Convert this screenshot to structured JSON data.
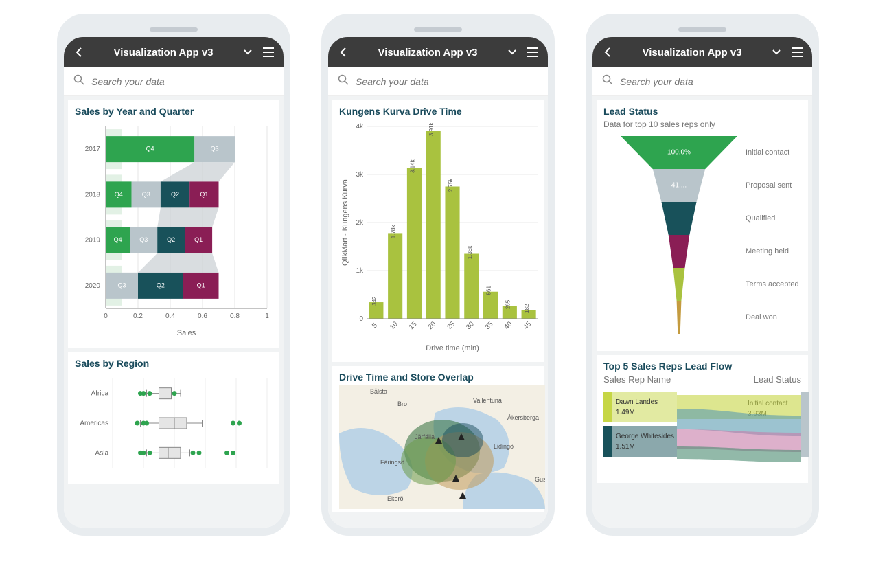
{
  "app": {
    "title": "Visualization App v3",
    "search_placeholder": "Search your data"
  },
  "colors": {
    "phone_frame": "#e8ecef",
    "header_bg": "#3c3c3c",
    "card_title": "#1a4b5c",
    "grid": "#dddddd",
    "axis_text": "#666666"
  },
  "phone1": {
    "chart1": {
      "title": "Sales by Year and Quarter",
      "type": "stacked-bar-horizontal",
      "xlabel": "Sales",
      "xticks": [
        0,
        0.2,
        0.4,
        0.6,
        0.8,
        1
      ],
      "years": [
        "2017",
        "2018",
        "2019",
        "2020"
      ],
      "palette": {
        "Q4_green": "#2ea44f",
        "Q3_light": "#b9c5cb",
        "Q3_pale_green": "#9dd6a8",
        "Q2_teal": "#18515a",
        "Q1_magenta": "#8a1e55",
        "flow_grey": "#c9cfd3"
      },
      "rows": [
        {
          "year": "2017",
          "segments": [
            {
              "label": "Q4",
              "width": 0.55,
              "color": "#2ea44f"
            },
            {
              "label": "Q3",
              "width": 0.25,
              "color": "#b9c5cb"
            }
          ]
        },
        {
          "year": "2018",
          "segments": [
            {
              "label": "Q4",
              "width": 0.16,
              "color": "#2ea44f"
            },
            {
              "label": "Q3",
              "width": 0.18,
              "color": "#b9c5cb"
            },
            {
              "label": "Q2",
              "width": 0.18,
              "color": "#18515a"
            },
            {
              "label": "Q1",
              "width": 0.18,
              "color": "#8a1e55"
            }
          ]
        },
        {
          "year": "2019",
          "segments": [
            {
              "label": "Q4",
              "width": 0.15,
              "color": "#2ea44f"
            },
            {
              "label": "Q3",
              "width": 0.17,
              "color": "#b9c5cb"
            },
            {
              "label": "Q2",
              "width": 0.17,
              "color": "#18515a"
            },
            {
              "label": "Q1",
              "width": 0.17,
              "color": "#8a1e55"
            }
          ]
        },
        {
          "year": "2020",
          "segments": [
            {
              "label": "Q3",
              "width": 0.2,
              "color": "#b9c5cb"
            },
            {
              "label": "Q2",
              "width": 0.28,
              "color": "#18515a"
            },
            {
              "label": "Q1",
              "width": 0.22,
              "color": "#8a1e55"
            }
          ]
        }
      ]
    },
    "chart2": {
      "title": "Sales by Region",
      "type": "boxplot",
      "categories": [
        "Africa",
        "Americas",
        "Asia"
      ],
      "point_color": "#2ea44f",
      "box_fill": "#e5e5e5",
      "box_stroke": "#888888",
      "boxes": [
        {
          "name": "Africa",
          "q1": 0.3,
          "med": 0.34,
          "q3": 0.38,
          "wlo": 0.22,
          "whi": 0.44,
          "pts": [
            0.18,
            0.2,
            0.24,
            0.4
          ]
        },
        {
          "name": "Americas",
          "q1": 0.3,
          "med": 0.4,
          "q3": 0.48,
          "wlo": 0.18,
          "whi": 0.58,
          "pts": [
            0.16,
            0.2,
            0.22,
            0.78,
            0.82
          ]
        },
        {
          "name": "Asia",
          "q1": 0.3,
          "med": 0.36,
          "q3": 0.44,
          "wlo": 0.22,
          "whi": 0.5,
          "pts": [
            0.18,
            0.2,
            0.24,
            0.52,
            0.56,
            0.74,
            0.78
          ]
        }
      ]
    }
  },
  "phone2": {
    "chart1": {
      "title": "Kungens Kurva Drive Time",
      "type": "bar",
      "ylabel": "QlikMart - Kungens Kurva",
      "xlabel": "Drive time (min)",
      "bar_color": "#a9c23f",
      "ylim": [
        0,
        4000
      ],
      "yticks": [
        "0",
        "1k",
        "2k",
        "3k",
        "4k"
      ],
      "categories": [
        "5",
        "10",
        "15",
        "20",
        "25",
        "30",
        "35",
        "40",
        "45"
      ],
      "values": [
        342,
        1780,
        3140,
        3910,
        2750,
        1350,
        561,
        265,
        182
      ],
      "value_labels": [
        "342",
        "1.78k",
        "3.14k",
        "3.91k",
        "2.75k",
        "1.35k",
        "561",
        "265",
        "182"
      ]
    },
    "chart2": {
      "title": "Drive Time and Store Overlap",
      "type": "map",
      "places": [
        "Bålsta",
        "Bro",
        "Vallentuna",
        "Åkersberga",
        "Järfälla",
        "Lidingö",
        "Färingsö",
        "Ekerö",
        "Gust"
      ],
      "overlay_colors": [
        "#2f6d3a",
        "#6b9b4a",
        "#c19a5b",
        "#1a4b5c"
      ],
      "water_color": "#bcd4e6",
      "land_color": "#f3efe4"
    }
  },
  "phone3": {
    "chart1": {
      "title": "Lead Status",
      "subtitle": "Data for top 10 sales reps only",
      "type": "funnel",
      "stages": [
        {
          "label": "Initial contact",
          "value": "100.0%",
          "color": "#2ea44f",
          "width": 1.0
        },
        {
          "label": "Proposal sent",
          "value": "41....",
          "color": "#b9c5cb",
          "width": 0.45
        },
        {
          "label": "Qualified",
          "value": "",
          "color": "#18515a",
          "width": 0.3
        },
        {
          "label": "Meeting held",
          "value": "",
          "color": "#8a1e55",
          "width": 0.18
        },
        {
          "label": "Terms accepted",
          "value": "",
          "color": "#a9c23f",
          "width": 0.1
        },
        {
          "label": "Deal won",
          "value": "",
          "color": "#c49b3f",
          "width": 0.04
        }
      ]
    },
    "chart2": {
      "title": "Top 5 Sales Reps Lead Flow",
      "type": "sankey",
      "left_header": "Sales Rep Name",
      "right_header": "Lead Status",
      "left_nodes": [
        {
          "name": "Dawn Landes",
          "value": "1.49M",
          "color": "#c6d645"
        },
        {
          "name": "George Whitesides",
          "value": "1.51M",
          "color": "#18515a"
        }
      ],
      "right_nodes": [
        {
          "name": "Initial contact",
          "value": "3.93M",
          "color": "#b9c5cb"
        }
      ],
      "flow_colors": [
        "#c6d645",
        "#5a9bb0",
        "#c67ba8",
        "#4a8a6f"
      ]
    }
  }
}
